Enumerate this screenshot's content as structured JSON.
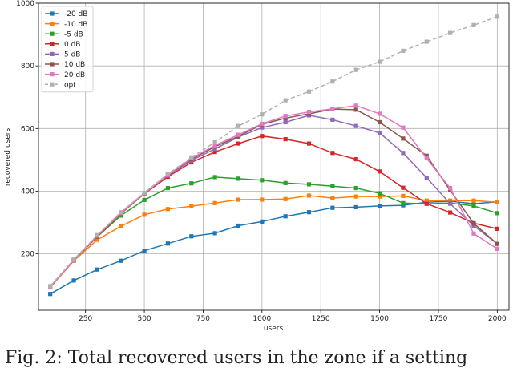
{
  "chart_data": {
    "type": "line",
    "title": "",
    "xlabel": "users",
    "ylabel": "recovered users",
    "xlim": [
      50,
      2050
    ],
    "ylim": [
      20,
      1000
    ],
    "xticks": [
      250,
      500,
      750,
      1000,
      1250,
      1500,
      1750,
      2000
    ],
    "yticks": [
      200,
      400,
      600,
      800,
      1000
    ],
    "grid": true,
    "legend_position": "top-left",
    "x": [
      100,
      200,
      300,
      400,
      500,
      600,
      700,
      800,
      900,
      1000,
      1100,
      1200,
      1300,
      1400,
      1500,
      1600,
      1700,
      1800,
      1900,
      2000
    ],
    "series": [
      {
        "name": "-20 dB",
        "color": "#1f77b4",
        "marker": "square",
        "dashed": false,
        "values": [
          72,
          115,
          150,
          178,
          210,
          233,
          256,
          266,
          290,
          303,
          320,
          333,
          347,
          349,
          353,
          355,
          365,
          368,
          360,
          366
        ]
      },
      {
        "name": "-10 dB",
        "color": "#ff7f0e",
        "marker": "square",
        "dashed": false,
        "values": [
          93,
          178,
          245,
          288,
          325,
          343,
          352,
          362,
          373,
          373,
          375,
          386,
          378,
          383,
          383,
          385,
          370,
          370,
          370,
          365
        ]
      },
      {
        "name": "-5 dB",
        "color": "#2ca02c",
        "marker": "square",
        "dashed": false,
        "values": [
          95,
          180,
          255,
          322,
          372,
          410,
          425,
          445,
          440,
          435,
          426,
          422,
          416,
          410,
          393,
          362,
          360,
          362,
          353,
          330
        ]
      },
      {
        "name": "0 dB",
        "color": "#d62728",
        "marker": "square",
        "dashed": false,
        "values": [
          95,
          180,
          256,
          328,
          392,
          446,
          492,
          525,
          552,
          576,
          566,
          552,
          522,
          502,
          463,
          411,
          360,
          332,
          298,
          280
        ]
      },
      {
        "name": "5 dB",
        "color": "#9467bd",
        "marker": "square",
        "dashed": false,
        "values": [
          95,
          180,
          258,
          330,
          393,
          450,
          498,
          535,
          573,
          603,
          620,
          642,
          628,
          608,
          586,
          522,
          443,
          360,
          290,
          232
        ]
      },
      {
        "name": "10 dB",
        "color": "#8c564b",
        "marker": "square",
        "dashed": false,
        "values": [
          95,
          180,
          258,
          330,
          394,
          452,
          502,
          542,
          575,
          613,
          633,
          647,
          662,
          660,
          620,
          568,
          513,
          403,
          297,
          232
        ]
      },
      {
        "name": "20 dB",
        "color": "#e377c2",
        "marker": "square",
        "dashed": false,
        "values": [
          95,
          180,
          258,
          330,
          394,
          452,
          505,
          546,
          580,
          615,
          640,
          653,
          663,
          673,
          647,
          603,
          505,
          410,
          265,
          216
        ]
      },
      {
        "name": "opt",
        "color": "#b0b0b0",
        "marker": "square",
        "dashed": true,
        "values": [
          97,
          182,
          260,
          333,
          395,
          455,
          508,
          556,
          608,
          645,
          690,
          718,
          750,
          787,
          813,
          848,
          877,
          905,
          930,
          957
        ]
      }
    ]
  },
  "caption": "Fig. 2:  Total recovered users in the zone if a setting"
}
